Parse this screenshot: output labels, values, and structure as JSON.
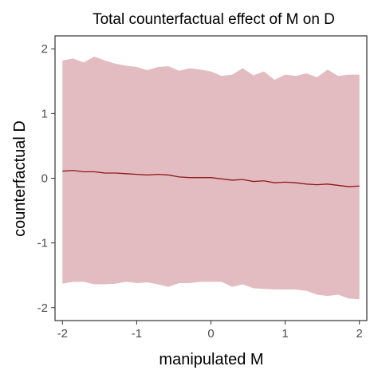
{
  "chart_data": {
    "type": "line",
    "title": "Total counterfactual effect of M on D",
    "xlabel": "manipulated M",
    "ylabel": "counterfactual D",
    "xlim": [
      -2.1,
      2.1
    ],
    "ylim": [
      -2.2,
      2.2
    ],
    "x_ticks": [
      -2,
      -1,
      0,
      1,
      2
    ],
    "x_tick_labels": [
      "-2",
      "-1",
      "0",
      "1",
      "2"
    ],
    "y_ticks": [
      -2,
      -1,
      0,
      1,
      2
    ],
    "y_tick_labels": [
      "-2",
      "-1",
      "0",
      "1",
      "2"
    ],
    "grid": false,
    "legend": "none",
    "colors": {
      "line": "#8b1a1a",
      "band": "#e3bcc1"
    },
    "series": [
      {
        "x": [
          -2.0,
          -1.8571,
          -1.7143,
          -1.5714,
          -1.4286,
          -1.2857,
          -1.1429,
          -1.0,
          -0.8571,
          -0.7143,
          -0.5714,
          -0.4286,
          -0.2857,
          -0.1429,
          0.0,
          0.1429,
          0.2857,
          0.4286,
          0.5714,
          0.7143,
          0.8571,
          1.0,
          1.1429,
          1.2857,
          1.4286,
          1.5714,
          1.7143,
          1.8571,
          2.0
        ],
        "mean": [
          0.11,
          0.12,
          0.1,
          0.1,
          0.08,
          0.08,
          0.07,
          0.06,
          0.05,
          0.06,
          0.05,
          0.02,
          0.01,
          0.01,
          0.01,
          -0.01,
          -0.03,
          -0.02,
          -0.05,
          -0.04,
          -0.07,
          -0.06,
          -0.07,
          -0.09,
          -0.1,
          -0.09,
          -0.11,
          -0.13,
          -0.12
        ],
        "upper": [
          1.82,
          1.85,
          1.79,
          1.88,
          1.82,
          1.77,
          1.74,
          1.72,
          1.67,
          1.72,
          1.73,
          1.66,
          1.7,
          1.68,
          1.65,
          1.58,
          1.6,
          1.7,
          1.59,
          1.65,
          1.52,
          1.6,
          1.58,
          1.62,
          1.56,
          1.68,
          1.58,
          1.6,
          1.6
        ],
        "lower": [
          -1.63,
          -1.6,
          -1.6,
          -1.64,
          -1.64,
          -1.63,
          -1.6,
          -1.62,
          -1.61,
          -1.64,
          -1.68,
          -1.62,
          -1.62,
          -1.6,
          -1.6,
          -1.6,
          -1.68,
          -1.64,
          -1.7,
          -1.71,
          -1.72,
          -1.72,
          -1.72,
          -1.74,
          -1.8,
          -1.82,
          -1.8,
          -1.86,
          -1.87
        ]
      }
    ]
  }
}
